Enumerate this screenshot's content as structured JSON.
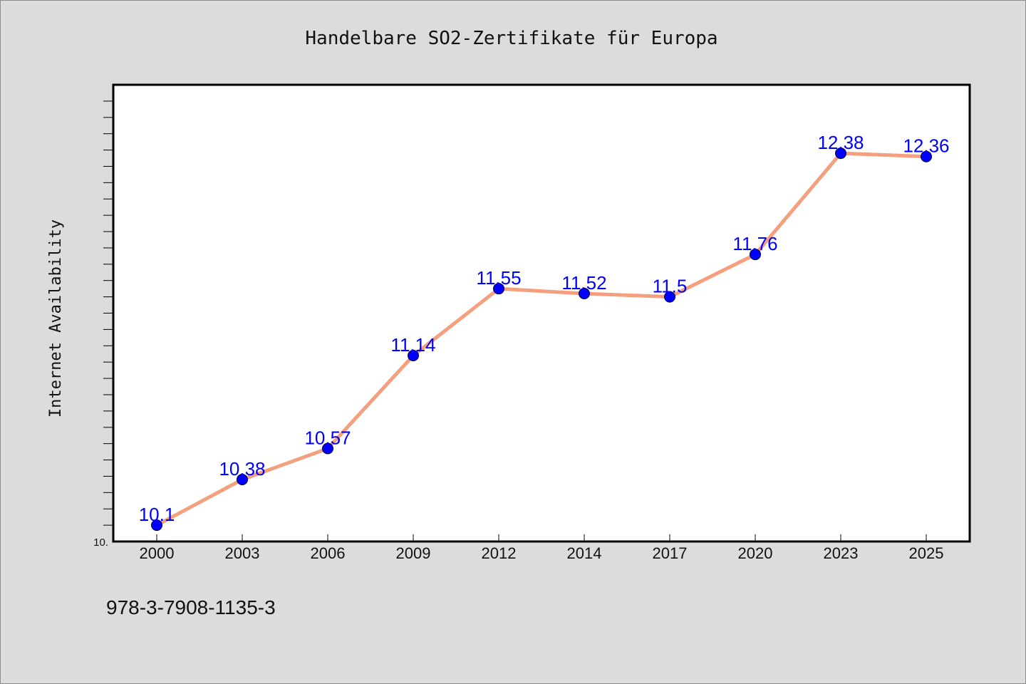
{
  "chart_data": {
    "type": "line",
    "title": "Handelbare SO2-Zertifikate für Europa",
    "xlabel": "",
    "ylabel": "Internet Availability",
    "categories": [
      "2000",
      "2003",
      "2006",
      "2009",
      "2012",
      "2014",
      "2017",
      "2020",
      "2023",
      "2025"
    ],
    "values": [
      10.1,
      10.38,
      10.57,
      11.14,
      11.55,
      11.52,
      11.5,
      11.76,
      12.38,
      12.36
    ],
    "data_labels": [
      "10.1",
      "10.38",
      "10.57",
      "11.14",
      "11.55",
      "11.52",
      "11.5",
      "11.76",
      "12.38",
      "12.36"
    ],
    "ylim": [
      10.0,
      12.8
    ],
    "y_tick_label": "10.",
    "grid": false,
    "legend": "none",
    "line_color": "#f4a07f",
    "marker_color": "#0000ff",
    "label_color": "#0000ff"
  },
  "footer": {
    "isbn": "978-3-7908-1135-3"
  }
}
